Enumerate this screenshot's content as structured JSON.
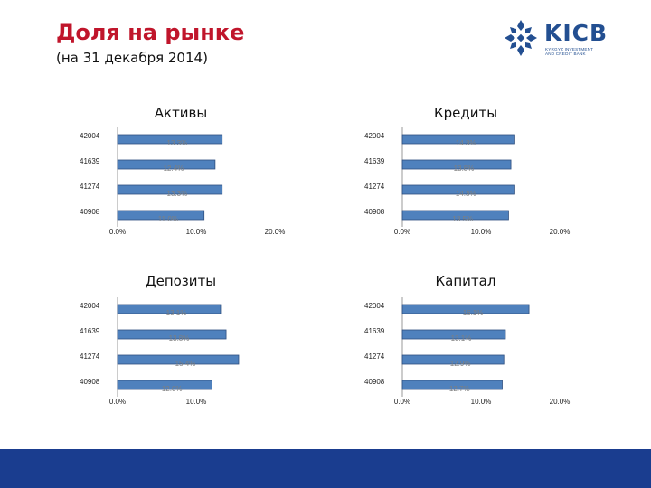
{
  "header": {
    "title": "Доля на рынке",
    "subtitle": "(на 31 декабря 2014)"
  },
  "logo": {
    "name": "KICB",
    "tagline_1": "KYRGYZ INVESTMENT",
    "tagline_2": "AND CREDIT BANK",
    "color": "#234f91"
  },
  "colors": {
    "bar_fill": "#4f81bd",
    "bar_stroke": "#2f4f7f",
    "title_red": "#c0152b",
    "footer_blue": "#1a3d8f"
  },
  "chart_data": [
    {
      "type": "bar",
      "orientation": "horizontal",
      "title": "Активы",
      "categories": [
        "42004",
        "41639",
        "41274",
        "40908"
      ],
      "values": [
        13.3,
        12.4,
        13.3,
        11.0
      ],
      "value_labels": [
        "13.3%",
        "12.4%",
        "13.3%",
        "11.0%"
      ],
      "xlim": [
        0,
        20
      ],
      "xticks": [
        "0.0%",
        "10.0%",
        "20.0%"
      ],
      "grid": false,
      "legend": "none"
    },
    {
      "type": "bar",
      "orientation": "horizontal",
      "title": "Кредиты",
      "categories": [
        "42004",
        "41639",
        "41274",
        "40908"
      ],
      "values": [
        14.3,
        13.8,
        14.3,
        13.5
      ],
      "value_labels": [
        "14.3%",
        "13.8%",
        "14.3%",
        "13.5%"
      ],
      "xlim": [
        0,
        20
      ],
      "xticks": [
        "0.0%",
        "10.0%",
        "20.0%"
      ],
      "grid": false,
      "legend": "none"
    },
    {
      "type": "bar",
      "orientation": "horizontal",
      "title": "Депозиты",
      "categories": [
        "42004",
        "41639",
        "41274",
        "40908"
      ],
      "values": [
        13.1,
        13.8,
        15.4,
        12.0
      ],
      "value_labels": [
        "13.1%",
        "13.8%",
        "15.4%",
        "12.0%"
      ],
      "xlim": [
        0,
        15
      ],
      "xticks": [
        "0.0%",
        "10.0%"
      ],
      "grid": false,
      "legend": "none"
    },
    {
      "type": "bar",
      "orientation": "horizontal",
      "title": "Капитал",
      "categories": [
        "42004",
        "41639",
        "41274",
        "40908"
      ],
      "values": [
        16.1,
        13.1,
        12.9,
        12.7
      ],
      "value_labels": [
        "16.1%",
        "13.1%",
        "12.9%",
        "12.7%"
      ],
      "xlim": [
        0,
        20
      ],
      "xticks": [
        "0.0%",
        "10.0%",
        "20.0%"
      ],
      "grid": false,
      "legend": "none"
    }
  ]
}
